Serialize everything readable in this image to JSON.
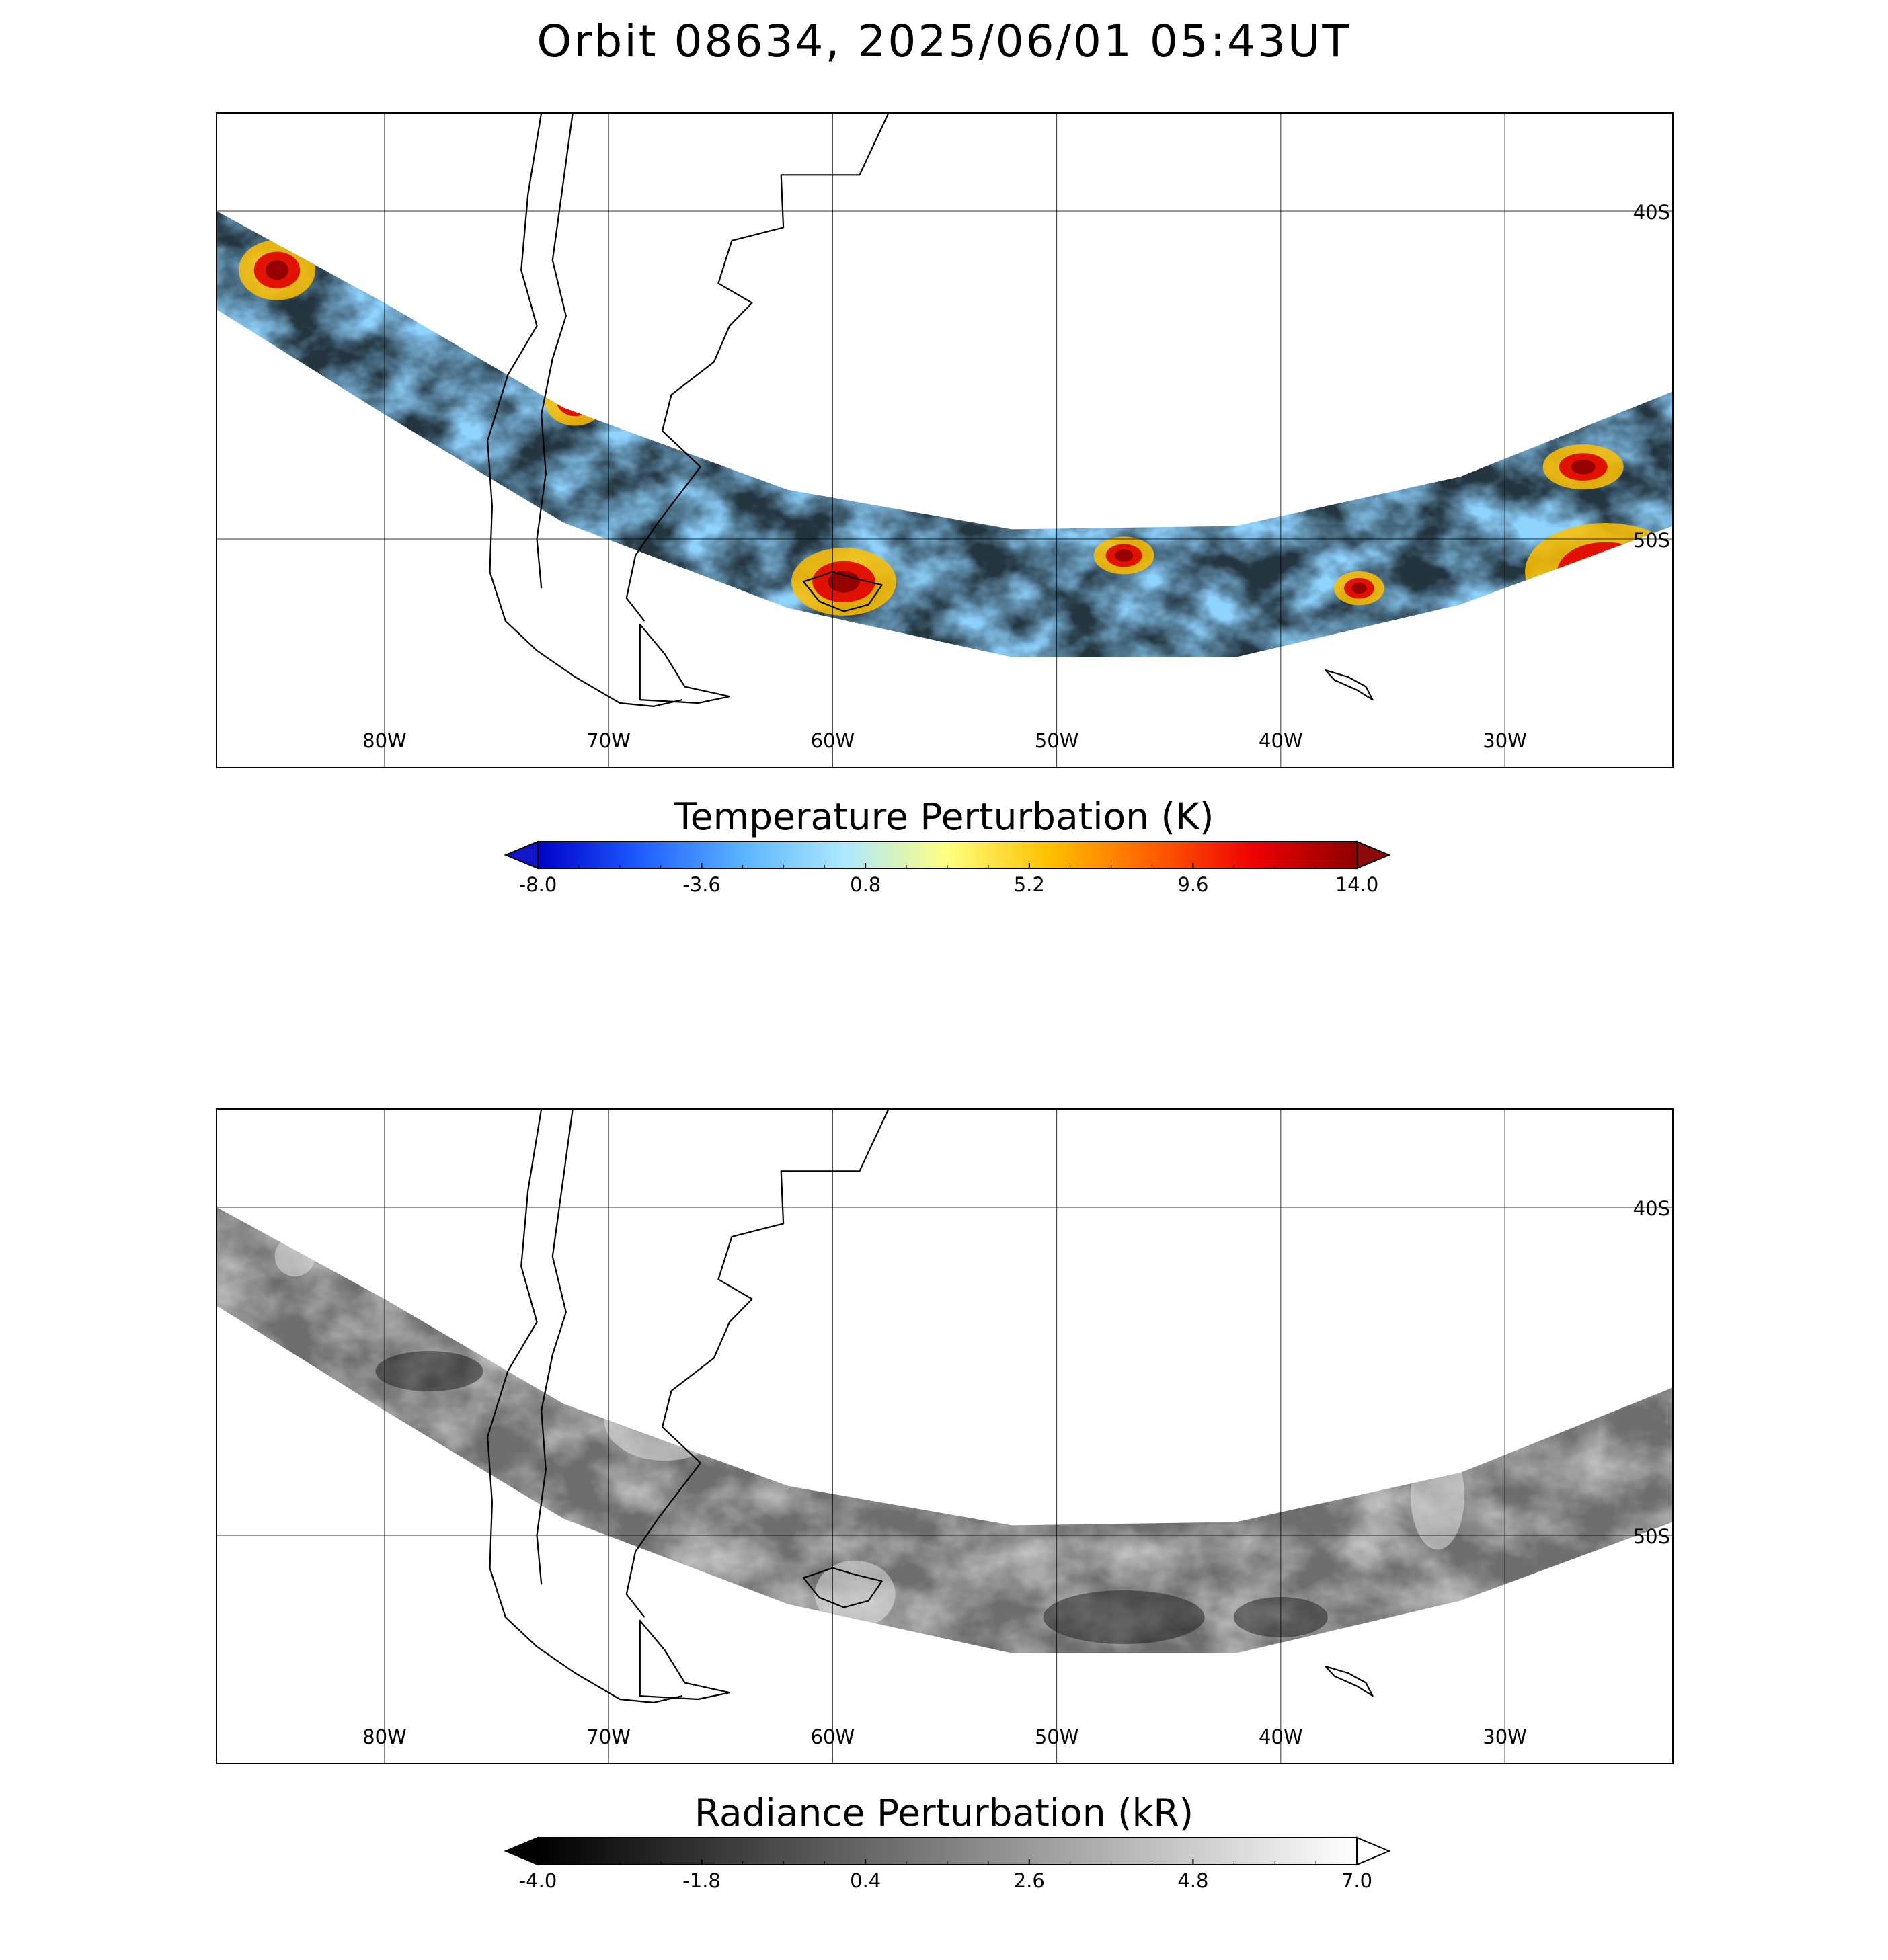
{
  "title": "Orbit 08634, 2025/06/01 05:43UT",
  "map": {
    "lon_range": [
      -87.5,
      -22.5
    ],
    "lat_range": [
      -37,
      -57
    ],
    "meridians": [
      "80W",
      "70W",
      "60W",
      "50W",
      "40W",
      "30W"
    ],
    "parallels": [
      "40S",
      "50S"
    ],
    "gridline_color": "#000000",
    "coastline_color": "#000000"
  },
  "panels": [
    {
      "id": "temperature",
      "colorbar_title": "Temperature Perturbation (K)",
      "colorbar_ticks": [
        "-8.0",
        "-3.6",
        "0.8",
        "5.2",
        "9.6",
        "14.0"
      ],
      "colorbar_range": [
        -8.0,
        14.0
      ],
      "colormap": [
        "#0000c8",
        "#1e5cff",
        "#5cb4ff",
        "#aee8ff",
        "#ffff80",
        "#ffc000",
        "#ff6000",
        "#ee0000",
        "#8c0000"
      ],
      "under_color": "#1414c8",
      "over_color": "#8c0a0a"
    },
    {
      "id": "radiance",
      "colorbar_title": "Radiance Perturbation (kR)",
      "colorbar_ticks": [
        "-4.0",
        "-1.8",
        "0.4",
        "2.6",
        "4.8",
        "7.0"
      ],
      "colorbar_range": [
        -4.0,
        7.0
      ],
      "colormap": [
        "#000000",
        "#404040",
        "#808080",
        "#c0c0c0",
        "#ffffff"
      ],
      "under_color": "#000000",
      "over_color": "#ffffff"
    }
  ]
}
